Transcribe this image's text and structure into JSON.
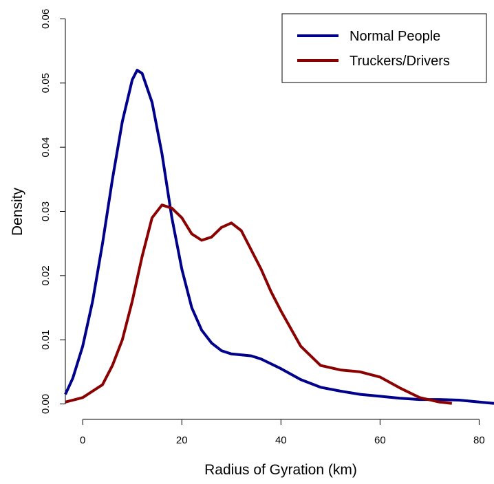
{
  "chart_data": {
    "type": "line",
    "xlabel": "Radius of Gyration (km)",
    "ylabel": "Density",
    "xlim": [
      -3.5,
      83
    ],
    "ylim": [
      -0.0024,
      0.0624
    ],
    "xticks": [
      0,
      20,
      40,
      60,
      80
    ],
    "yticks": [
      {
        "value": 0,
        "label": "0.00"
      },
      0.01,
      0.02,
      0.03,
      0.04,
      0.05,
      0.06
    ],
    "legend": "topright",
    "series": [
      {
        "name": "Normal People",
        "color": "#00008b",
        "x": [
          -3.5,
          -2,
          0,
          2,
          4,
          6,
          8,
          10,
          11,
          12,
          14,
          16,
          18,
          20,
          22,
          24,
          26,
          28,
          30,
          34,
          36,
          40,
          44,
          48,
          52,
          56,
          60,
          64,
          68,
          72,
          76,
          80,
          83
        ],
        "values": [
          0.0015,
          0.004,
          0.009,
          0.016,
          0.025,
          0.035,
          0.044,
          0.0505,
          0.052,
          0.0515,
          0.047,
          0.039,
          0.029,
          0.021,
          0.015,
          0.0115,
          0.0095,
          0.0083,
          0.0078,
          0.0075,
          0.007,
          0.0055,
          0.0038,
          0.0026,
          0.002,
          0.0015,
          0.0012,
          0.0009,
          0.0007,
          0.0007,
          0.0006,
          0.0003,
          0.0001
        ]
      },
      {
        "name": "Truckers/Drivers",
        "color": "#8b0000",
        "x": [
          -3.5,
          0,
          4,
          6,
          8,
          10,
          12,
          14,
          16,
          18,
          20,
          22,
          24,
          26,
          28,
          30,
          32,
          34,
          36,
          38,
          40,
          44,
          48,
          52,
          56,
          60,
          64,
          68,
          72,
          74.5
        ],
        "values": [
          0.0003,
          0.001,
          0.003,
          0.006,
          0.01,
          0.016,
          0.023,
          0.029,
          0.031,
          0.0305,
          0.029,
          0.0265,
          0.0255,
          0.026,
          0.0275,
          0.0282,
          0.027,
          0.024,
          0.021,
          0.0175,
          0.0145,
          0.009,
          0.006,
          0.0053,
          0.005,
          0.0042,
          0.0025,
          0.001,
          0.0003,
          0.0001
        ]
      }
    ]
  }
}
